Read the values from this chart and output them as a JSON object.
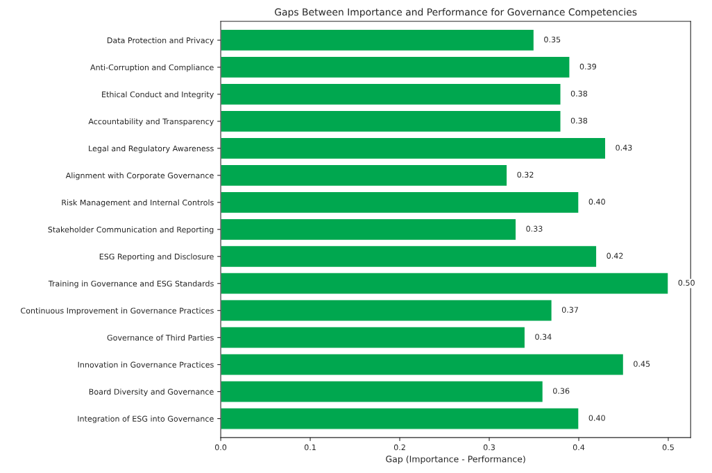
{
  "chart_data": {
    "type": "bar",
    "orientation": "horizontal",
    "title": "Gaps Between Importance and Performance for Governance Competencies",
    "xlabel": "Gap (Importance - Performance)",
    "categories": [
      "Data Protection and Privacy",
      "Anti-Corruption and Compliance",
      "Ethical Conduct and Integrity",
      "Accountability and Transparency",
      "Legal and Regulatory Awareness",
      "Alignment with Corporate Governance",
      "Risk Management and Internal Controls",
      "Stakeholder Communication and Reporting",
      "ESG Reporting and Disclosure",
      "Training in Governance and ESG Standards",
      "Continuous Improvement in Governance Practices",
      "Governance of Third Parties",
      "Innovation in Governance Practices",
      "Board Diversity and Governance",
      "Integration of ESG into Governance"
    ],
    "values": [
      0.35,
      0.39,
      0.38,
      0.38,
      0.43,
      0.32,
      0.4,
      0.33,
      0.42,
      0.5,
      0.37,
      0.34,
      0.45,
      0.36,
      0.4
    ],
    "value_labels": [
      "0.35",
      "0.39",
      "0.38",
      "0.38",
      "0.43",
      "0.32",
      "0.40",
      "0.33",
      "0.42",
      "0.50",
      "0.37",
      "0.34",
      "0.45",
      "0.36",
      "0.40"
    ],
    "color": "#00a74f",
    "xlim": [
      0,
      0.525
    ],
    "xticks": [
      {
        "value": 0,
        "label": "0.0"
      },
      0.1,
      0.2,
      0.3,
      0.4,
      0.5
    ],
    "grid": false,
    "legend": false
  }
}
